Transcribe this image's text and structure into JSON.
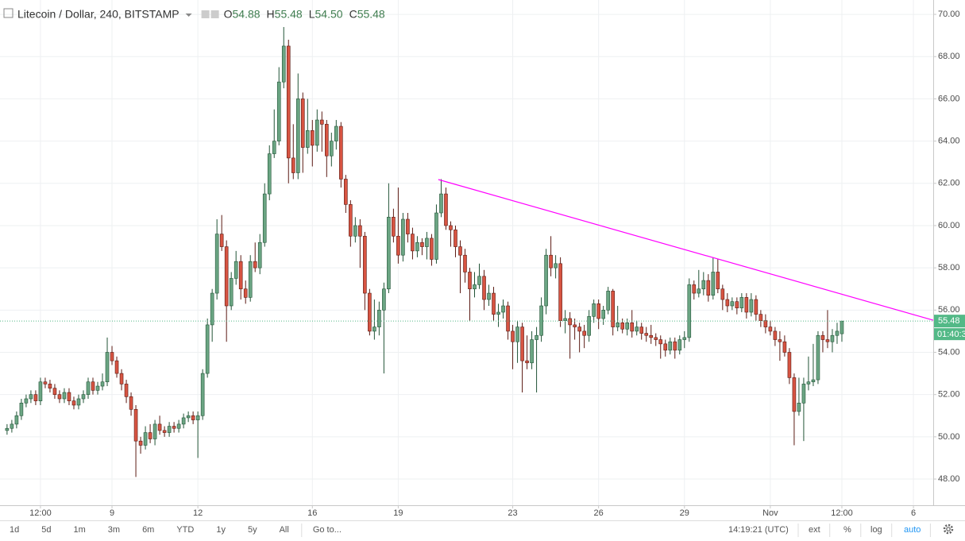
{
  "chart_data": {
    "type": "candlestick",
    "header": {
      "symbol": "Litecoin / Dollar, 240, BITSTAMP",
      "ohlc": [
        {
          "label": "O",
          "value": "54.88"
        },
        {
          "label": "H",
          "value": "55.48"
        },
        {
          "label": "L",
          "value": "54.50"
        },
        {
          "label": "C",
          "value": "55.48"
        }
      ]
    },
    "up_color": "#6ba583",
    "down_color": "#d75442",
    "up_border": "#225437",
    "down_border": "#5b1a13",
    "ohlc": [
      [
        50.3,
        50.6,
        50.1,
        50.4
      ],
      [
        50.4,
        50.8,
        50.2,
        50.6
      ],
      [
        50.6,
        51.2,
        50.4,
        51.0
      ],
      [
        51.0,
        51.8,
        50.8,
        51.6
      ],
      [
        51.6,
        52.0,
        51.4,
        51.8
      ],
      [
        51.8,
        52.2,
        51.6,
        52.0
      ],
      [
        52.0,
        52.2,
        51.5,
        51.7
      ],
      [
        51.7,
        52.8,
        51.5,
        52.6
      ],
      [
        52.6,
        52.8,
        52.3,
        52.5
      ],
      [
        52.5,
        52.7,
        52.1,
        52.3
      ],
      [
        52.3,
        52.5,
        51.8,
        52.0
      ],
      [
        52.0,
        52.2,
        51.6,
        51.8
      ],
      [
        51.8,
        52.3,
        51.6,
        52.1
      ],
      [
        52.1,
        52.3,
        51.5,
        51.7
      ],
      [
        51.7,
        51.9,
        51.3,
        51.5
      ],
      [
        51.5,
        52.0,
        51.3,
        51.8
      ],
      [
        51.8,
        52.2,
        51.6,
        52.0
      ],
      [
        52.0,
        52.8,
        51.8,
        52.6
      ],
      [
        52.6,
        52.8,
        52.0,
        52.2
      ],
      [
        52.2,
        52.6,
        52.0,
        52.4
      ],
      [
        52.4,
        53.0,
        52.2,
        52.6
      ],
      [
        52.6,
        54.7,
        52.4,
        54.0
      ],
      [
        54.0,
        54.3,
        53.4,
        53.6
      ],
      [
        53.6,
        53.8,
        52.8,
        53.0
      ],
      [
        53.0,
        53.2,
        52.2,
        52.5
      ],
      [
        52.5,
        52.7,
        51.6,
        51.9
      ],
      [
        51.9,
        52.1,
        51.0,
        51.3
      ],
      [
        51.3,
        51.5,
        48.1,
        49.8
      ],
      [
        49.8,
        50.0,
        49.2,
        49.6
      ],
      [
        49.6,
        50.5,
        49.4,
        50.2
      ],
      [
        50.2,
        50.6,
        49.7,
        49.9
      ],
      [
        49.9,
        50.8,
        49.6,
        50.6
      ],
      [
        50.6,
        51.0,
        50.1,
        50.3
      ],
      [
        50.3,
        50.5,
        50.0,
        50.2
      ],
      [
        50.2,
        50.7,
        50.0,
        50.5
      ],
      [
        50.5,
        50.7,
        50.2,
        50.4
      ],
      [
        50.4,
        50.8,
        50.2,
        50.6
      ],
      [
        50.6,
        51.1,
        50.4,
        50.9
      ],
      [
        50.9,
        51.2,
        50.7,
        51.0
      ],
      [
        51.0,
        51.2,
        50.6,
        50.8
      ],
      [
        50.8,
        51.2,
        49.0,
        51.0
      ],
      [
        51.0,
        53.2,
        50.8,
        53.0
      ],
      [
        53.0,
        55.6,
        52.8,
        55.3
      ],
      [
        55.3,
        57.0,
        54.5,
        56.8
      ],
      [
        56.8,
        60.3,
        56.5,
        59.6
      ],
      [
        59.6,
        60.5,
        58.8,
        59.0
      ],
      [
        59.0,
        59.3,
        54.5,
        56.2
      ],
      [
        56.2,
        57.8,
        56.0,
        57.5
      ],
      [
        57.5,
        58.8,
        57.2,
        58.3
      ],
      [
        58.3,
        58.6,
        56.5,
        57.0
      ],
      [
        57.0,
        57.4,
        56.3,
        56.6
      ],
      [
        56.6,
        58.6,
        56.4,
        58.3
      ],
      [
        58.3,
        59.2,
        57.8,
        58.0
      ],
      [
        58.0,
        59.6,
        57.7,
        59.2
      ],
      [
        59.2,
        62.0,
        59.0,
        61.5
      ],
      [
        61.5,
        63.8,
        61.2,
        63.4
      ],
      [
        63.4,
        65.5,
        63.2,
        64.0
      ],
      [
        64.0,
        67.5,
        63.8,
        66.8
      ],
      [
        66.8,
        69.4,
        66.5,
        68.5
      ],
      [
        68.5,
        68.8,
        62.0,
        63.2
      ],
      [
        63.2,
        64.8,
        62.2,
        62.5
      ],
      [
        62.5,
        67.2,
        62.2,
        66.0
      ],
      [
        66.0,
        66.3,
        62.5,
        63.7
      ],
      [
        63.7,
        66.0,
        63.4,
        64.5
      ],
      [
        64.5,
        65.0,
        62.8,
        63.8
      ],
      [
        63.8,
        65.5,
        63.5,
        65.0
      ],
      [
        65.0,
        65.4,
        63.5,
        64.8
      ],
      [
        64.8,
        65.0,
        62.3,
        63.3
      ],
      [
        63.3,
        64.4,
        62.8,
        64.0
      ],
      [
        64.0,
        65.0,
        63.6,
        64.7
      ],
      [
        64.7,
        64.9,
        61.8,
        62.2
      ],
      [
        62.2,
        62.4,
        60.6,
        61.0
      ],
      [
        61.0,
        61.2,
        59.0,
        59.5
      ],
      [
        59.5,
        60.4,
        59.2,
        60.0
      ],
      [
        60.0,
        60.3,
        58.0,
        59.5
      ],
      [
        59.5,
        59.7,
        56.0,
        56.8
      ],
      [
        56.8,
        57.0,
        54.8,
        55.0
      ],
      [
        55.0,
        56.5,
        54.6,
        55.2
      ],
      [
        55.2,
        56.4,
        54.8,
        56.0
      ],
      [
        56.0,
        57.3,
        53.0,
        57.0
      ],
      [
        57.0,
        62.0,
        56.8,
        60.4
      ],
      [
        60.4,
        60.8,
        59.2,
        59.5
      ],
      [
        59.5,
        61.8,
        58.2,
        58.6
      ],
      [
        58.6,
        60.6,
        58.3,
        60.3
      ],
      [
        60.3,
        60.6,
        59.2,
        59.6
      ],
      [
        59.6,
        59.9,
        58.4,
        58.8
      ],
      [
        58.8,
        59.5,
        58.5,
        59.2
      ],
      [
        59.2,
        59.4,
        58.6,
        59.0
      ],
      [
        59.0,
        59.7,
        58.4,
        59.4
      ],
      [
        59.4,
        59.6,
        58.1,
        58.4
      ],
      [
        58.4,
        61.0,
        58.2,
        60.6
      ],
      [
        60.6,
        62.2,
        60.4,
        61.5
      ],
      [
        61.5,
        61.8,
        59.8,
        60.0
      ],
      [
        60.0,
        60.2,
        59.0,
        59.8
      ],
      [
        59.8,
        60.0,
        58.5,
        59.0
      ],
      [
        59.0,
        59.3,
        56.8,
        58.6
      ],
      [
        58.6,
        58.9,
        57.3,
        57.8
      ],
      [
        57.8,
        58.0,
        55.5,
        57.0
      ],
      [
        57.0,
        57.8,
        56.6,
        57.2
      ],
      [
        57.2,
        58.2,
        57.0,
        57.6
      ],
      [
        57.6,
        57.9,
        56.0,
        56.5
      ],
      [
        56.5,
        57.2,
        56.2,
        56.8
      ],
      [
        56.8,
        57.1,
        55.5,
        55.8
      ],
      [
        55.8,
        56.3,
        55.2,
        55.9
      ],
      [
        55.9,
        56.5,
        55.6,
        56.2
      ],
      [
        56.2,
        56.4,
        54.6,
        55.0
      ],
      [
        55.0,
        55.3,
        53.2,
        54.5
      ],
      [
        54.5,
        55.5,
        53.5,
        55.2
      ],
      [
        55.2,
        55.4,
        52.1,
        53.6
      ],
      [
        53.6,
        54.8,
        53.2,
        53.5
      ],
      [
        53.5,
        55.0,
        53.2,
        54.6
      ],
      [
        54.6,
        55.2,
        52.1,
        54.8
      ],
      [
        54.8,
        56.6,
        54.5,
        56.2
      ],
      [
        56.2,
        58.9,
        55.8,
        58.6
      ],
      [
        58.6,
        59.5,
        57.6,
        58.0
      ],
      [
        58.0,
        58.6,
        57.5,
        58.2
      ],
      [
        58.2,
        58.5,
        55.2,
        55.5
      ],
      [
        55.5,
        56.0,
        54.9,
        55.6
      ],
      [
        55.6,
        55.9,
        53.7,
        55.3
      ],
      [
        55.3,
        55.6,
        54.6,
        55.2
      ],
      [
        55.2,
        55.4,
        54.0,
        55.0
      ],
      [
        55.0,
        55.3,
        54.2,
        54.8
      ],
      [
        54.8,
        56.0,
        54.5,
        55.7
      ],
      [
        55.7,
        56.5,
        55.4,
        56.3
      ],
      [
        56.3,
        56.5,
        55.1,
        55.6
      ],
      [
        55.6,
        56.2,
        55.3,
        56.0
      ],
      [
        56.0,
        57.1,
        55.8,
        56.9
      ],
      [
        56.9,
        57.0,
        54.8,
        55.2
      ],
      [
        55.2,
        56.2,
        55.0,
        55.4
      ],
      [
        55.4,
        55.6,
        54.9,
        55.1
      ],
      [
        55.1,
        55.6,
        54.8,
        55.4
      ],
      [
        55.4,
        56.0,
        54.7,
        55.0
      ],
      [
        55.0,
        55.5,
        54.8,
        55.2
      ],
      [
        55.2,
        55.4,
        54.6,
        54.9
      ],
      [
        54.9,
        55.2,
        54.5,
        54.8
      ],
      [
        54.8,
        55.3,
        54.4,
        54.7
      ],
      [
        54.7,
        54.9,
        54.3,
        54.6
      ],
      [
        54.6,
        54.8,
        53.7,
        54.4
      ],
      [
        54.4,
        54.6,
        53.8,
        54.1
      ],
      [
        54.1,
        54.7,
        53.9,
        54.5
      ],
      [
        54.5,
        54.7,
        53.7,
        54.1
      ],
      [
        54.1,
        54.8,
        53.9,
        54.6
      ],
      [
        54.6,
        55.0,
        54.2,
        54.7
      ],
      [
        54.7,
        57.5,
        54.5,
        57.2
      ],
      [
        57.2,
        57.4,
        56.5,
        56.8
      ],
      [
        56.8,
        57.9,
        56.6,
        57.0
      ],
      [
        57.0,
        57.8,
        56.7,
        57.4
      ],
      [
        57.4,
        57.7,
        56.4,
        56.7
      ],
      [
        56.7,
        58.5,
        56.5,
        57.8
      ],
      [
        57.8,
        58.4,
        56.8,
        57.0
      ],
      [
        57.0,
        57.2,
        56.0,
        56.5
      ],
      [
        56.5,
        56.8,
        55.9,
        56.2
      ],
      [
        56.2,
        56.6,
        56.0,
        56.4
      ],
      [
        56.4,
        56.6,
        55.8,
        56.1
      ],
      [
        56.1,
        56.8,
        55.9,
        56.6
      ],
      [
        56.6,
        56.8,
        55.6,
        55.9
      ],
      [
        55.9,
        56.8,
        55.7,
        56.5
      ],
      [
        56.5,
        56.7,
        55.5,
        55.8
      ],
      [
        55.8,
        56.0,
        55.2,
        55.5
      ],
      [
        55.5,
        55.8,
        54.9,
        55.2
      ],
      [
        55.2,
        55.5,
        54.8,
        55.0
      ],
      [
        55.0,
        55.2,
        54.3,
        54.6
      ],
      [
        54.6,
        55.0,
        53.6,
        54.5
      ],
      [
        54.5,
        54.8,
        53.8,
        54.0
      ],
      [
        54.0,
        54.2,
        52.5,
        52.8
      ],
      [
        52.8,
        53.0,
        49.6,
        51.2
      ],
      [
        51.2,
        52.8,
        51.0,
        51.6
      ],
      [
        51.6,
        52.8,
        49.8,
        52.5
      ],
      [
        52.5,
        53.8,
        52.2,
        52.6
      ],
      [
        52.6,
        54.4,
        52.4,
        52.7
      ],
      [
        52.7,
        55.0,
        52.5,
        54.8
      ],
      [
        54.8,
        55.0,
        54.0,
        54.6
      ],
      [
        54.6,
        56.0,
        54.2,
        54.5
      ],
      [
        54.5,
        55.1,
        54.0,
        54.8
      ],
      [
        54.8,
        55.4,
        54.4,
        55.0
      ],
      [
        54.88,
        55.48,
        54.5,
        55.48
      ]
    ],
    "xlim": [
      -0.98,
      194.65
    ],
    "xticks": [
      {
        "value": 7.5,
        "label": "12:00"
      },
      {
        "value": 22.5,
        "label": "9"
      },
      {
        "value": 40.5,
        "label": "12"
      },
      {
        "value": 64.5,
        "label": "16"
      },
      {
        "value": 82.5,
        "label": "19"
      },
      {
        "value": 106.5,
        "label": "23"
      },
      {
        "value": 124.5,
        "label": "26"
      },
      {
        "value": 142.5,
        "label": "29"
      },
      {
        "value": 160.5,
        "label": "Nov"
      },
      {
        "value": 175.5,
        "label": "12:00"
      },
      {
        "value": 190.5,
        "label": "6"
      }
    ],
    "ylim": [
      46.76,
      70.68
    ],
    "yticks": [
      {
        "value": 48,
        "label": "48.00"
      },
      {
        "value": 50,
        "label": "50.00"
      },
      {
        "value": 52,
        "label": "52.00"
      },
      {
        "value": 54,
        "label": "54.00"
      },
      {
        "value": 56,
        "label": "56.00"
      },
      {
        "value": 58,
        "label": "58.00"
      },
      {
        "value": 60,
        "label": "60.00"
      },
      {
        "value": 62,
        "label": "62.00"
      },
      {
        "value": 64,
        "label": "64.00"
      },
      {
        "value": 66,
        "label": "66.00"
      },
      {
        "value": 68,
        "label": "68.00"
      },
      {
        "value": 70,
        "label": "70.00"
      }
    ],
    "grid": true,
    "trendline": {
      "x": [
        90.9,
        194.65
      ],
      "y": [
        62.18,
        55.52
      ],
      "color": "#ff00ff"
    },
    "countdown": "01:40:3",
    "price_color": "#53b987"
  },
  "toolbar": {
    "ranges": [
      "1d",
      "5d",
      "1m",
      "3m",
      "6m",
      "YTD",
      "1y",
      "5y",
      "All"
    ],
    "goto": "Go to...",
    "clock": "14:19:21 (UTC)",
    "options": [
      "ext",
      "%",
      "log",
      "auto"
    ]
  }
}
